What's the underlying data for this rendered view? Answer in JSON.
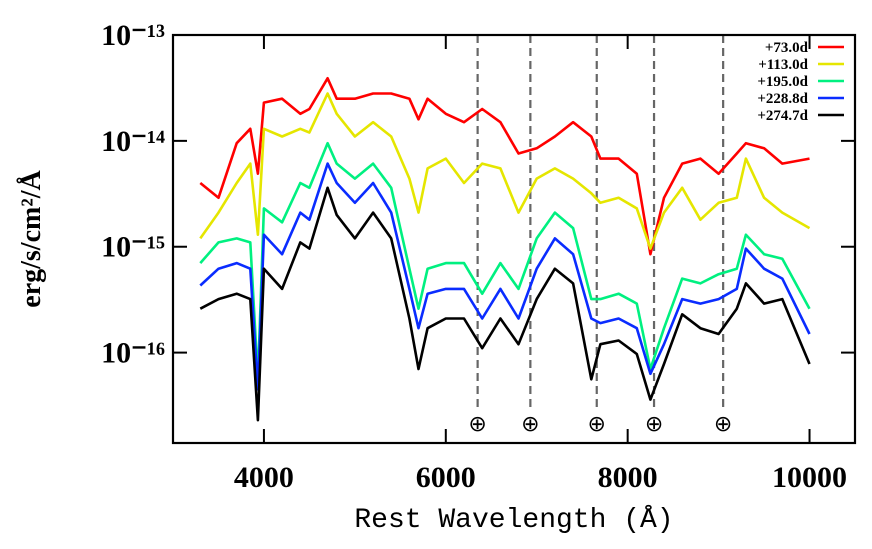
{
  "chart_data": {
    "type": "line",
    "xlabel": "Rest Wavelength (Å)",
    "ylabel": "erg/s/cm²/Å",
    "log_y": true,
    "legend": "upper right",
    "xlim": [
      3000,
      10500
    ],
    "xticks": [
      4000,
      6000,
      8000,
      10000
    ],
    "ylim": [
      1.4e-17,
      1e-13
    ],
    "yticks": [
      {
        "value": 1e-16,
        "label": "10⁻¹⁶"
      },
      {
        "value": 1e-15,
        "label": "10⁻¹⁵"
      },
      {
        "value": 1e-14,
        "label": "10⁻¹⁴"
      },
      {
        "value": 1e-13,
        "label": "10⁻¹³"
      }
    ],
    "telluric_x": [
      6350,
      6930,
      7660,
      8290,
      9050
    ],
    "telluric_symbol": "⊕",
    "x": [
      3300,
      3500,
      3700,
      3850,
      3934,
      4000,
      4200,
      4400,
      4500,
      4700,
      4800,
      5000,
      5200,
      5400,
      5600,
      5700,
      5800,
      6000,
      6200,
      6400,
      6600,
      6800,
      7000,
      7200,
      7400,
      7600,
      7700,
      7900,
      8100,
      8250,
      8400,
      8600,
      8800,
      9000,
      9200,
      9300,
      9500,
      9700,
      10000
    ],
    "series": [
      {
        "name": "+73.0d",
        "color": "#ff0000",
        "values": [
          4e-15,
          2.9e-15,
          9.5e-15,
          1.3e-14,
          4.9e-15,
          2.3e-14,
          2.5e-14,
          1.8e-14,
          2e-14,
          3.9e-14,
          2.5e-14,
          2.5e-14,
          2.8e-14,
          2.8e-14,
          2.5e-14,
          1.6e-14,
          2.5e-14,
          1.8e-14,
          1.5e-14,
          2e-14,
          1.5e-14,
          7.6e-15,
          8.5e-15,
          1.1e-14,
          1.5e-14,
          1.1e-14,
          6.8e-15,
          6.8e-15,
          4.9e-15,
          8.5e-16,
          2.9e-15,
          6.1e-15,
          6.8e-15,
          4.9e-15,
          7.6e-15,
          9.5e-15,
          8.5e-15,
          6.1e-15,
          6.8e-15
        ]
      },
      {
        "name": "+113.0d",
        "color": "#e5e600",
        "values": [
          1.2e-15,
          2.1e-15,
          4e-15,
          6.1e-15,
          1.3e-15,
          1.3e-14,
          1.1e-14,
          1.3e-14,
          1.2e-14,
          2.8e-14,
          1.8e-14,
          1.1e-14,
          1.5e-14,
          1.1e-14,
          4.4e-15,
          2.1e-15,
          5.5e-15,
          6.8e-15,
          4e-15,
          6.1e-15,
          5.5e-15,
          2.1e-15,
          4.4e-15,
          5.5e-15,
          4.4e-15,
          3.2e-15,
          2.6e-15,
          2.9e-15,
          2.3e-15,
          9.6e-16,
          2.1e-15,
          3.6e-15,
          1.8e-15,
          2.6e-15,
          2.9e-15,
          6.8e-15,
          2.9e-15,
          2.1e-15,
          1.5e-15
        ]
      },
      {
        "name": "+195.0d",
        "color": "#00f080",
        "values": [
          7e-16,
          1.1e-15,
          1.2e-15,
          1.1e-15,
          5.6e-17,
          2.3e-15,
          1.7e-15,
          4e-15,
          3.6e-15,
          9.5e-15,
          6.1e-15,
          4.4e-15,
          6.1e-15,
          3.6e-15,
          6.2e-16,
          2.6e-16,
          6.2e-16,
          7e-16,
          7e-16,
          3.6e-16,
          7e-16,
          4e-16,
          1.2e-15,
          2.1e-15,
          1.5e-15,
          3.2e-16,
          3.2e-16,
          3.6e-16,
          2.9e-16,
          7e-17,
          1.7e-16,
          5e-16,
          4.5e-16,
          5.5e-16,
          6.2e-16,
          1.3e-15,
          8.5e-16,
          7.7e-16,
          2.6e-16
        ]
      },
      {
        "name": "+228.8d",
        "color": "#0a2cff",
        "values": [
          4.3e-16,
          6.2e-16,
          7e-16,
          6.2e-16,
          4.5e-17,
          1.3e-15,
          8.5e-16,
          2.1e-15,
          1.8e-15,
          6.1e-15,
          4e-15,
          2.6e-15,
          4e-15,
          2.1e-15,
          4e-16,
          1.7e-16,
          3.6e-16,
          4e-16,
          4e-16,
          2.1e-16,
          4e-16,
          2.1e-16,
          6.2e-16,
          1.2e-15,
          8.5e-16,
          2.1e-16,
          1.9e-16,
          2.1e-16,
          1.7e-16,
          6.3e-17,
          1.2e-16,
          3.2e-16,
          2.9e-16,
          3.2e-16,
          4e-16,
          9.6e-16,
          6.2e-16,
          5e-16,
          1.5e-16
        ]
      },
      {
        "name": "+274.7d",
        "color": "#000000",
        "values": [
          2.6e-16,
          3.2e-16,
          3.6e-16,
          3.2e-16,
          2.3e-17,
          6.2e-16,
          4e-16,
          1.1e-15,
          9.6e-16,
          3.6e-15,
          2e-15,
          1.2e-15,
          2.1e-15,
          1.2e-15,
          2.1e-16,
          7e-17,
          1.7e-16,
          2.1e-16,
          2.1e-16,
          1.1e-16,
          2.1e-16,
          1.2e-16,
          3.2e-16,
          6.2e-16,
          4.5e-16,
          5.6e-17,
          1.2e-16,
          1.3e-16,
          9.7e-17,
          3.6e-17,
          7.8e-17,
          2.3e-16,
          1.7e-16,
          1.5e-16,
          2.6e-16,
          4.5e-16,
          2.9e-16,
          3.2e-16,
          7.8e-17
        ]
      }
    ]
  }
}
